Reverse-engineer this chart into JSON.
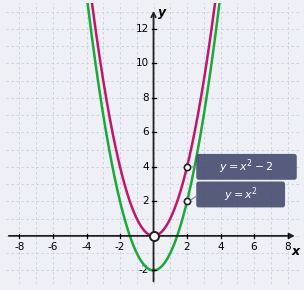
{
  "xlabel": "x",
  "ylabel": "y",
  "xlim": [
    -8.8,
    8.8
  ],
  "ylim": [
    -2.8,
    13.5
  ],
  "x_axis_min": -8.8,
  "x_axis_max": 8.8,
  "y_axis_min": -2.8,
  "y_axis_max": 13.5,
  "xticks": [
    -8,
    -6,
    -4,
    -2,
    2,
    4,
    6,
    8
  ],
  "yticks": [
    -2,
    2,
    4,
    6,
    8,
    10,
    12
  ],
  "curve1_color": "#c0176a",
  "curve2_color": "#1aa83a",
  "label_box_color": "#4a4e72",
  "label_text_color": "#ffffff",
  "open_circle_fill": "#ffffff",
  "open_circle_edge": "#222222",
  "grid_color": "#c5cfe0",
  "background_color": "#eef0f5",
  "annotation_line_color": "#8888aa",
  "arrow_color": "#222222",
  "tick_label_fontsize": 7.5,
  "axis_label_fontsize": 9,
  "legend_fontsize": 8
}
